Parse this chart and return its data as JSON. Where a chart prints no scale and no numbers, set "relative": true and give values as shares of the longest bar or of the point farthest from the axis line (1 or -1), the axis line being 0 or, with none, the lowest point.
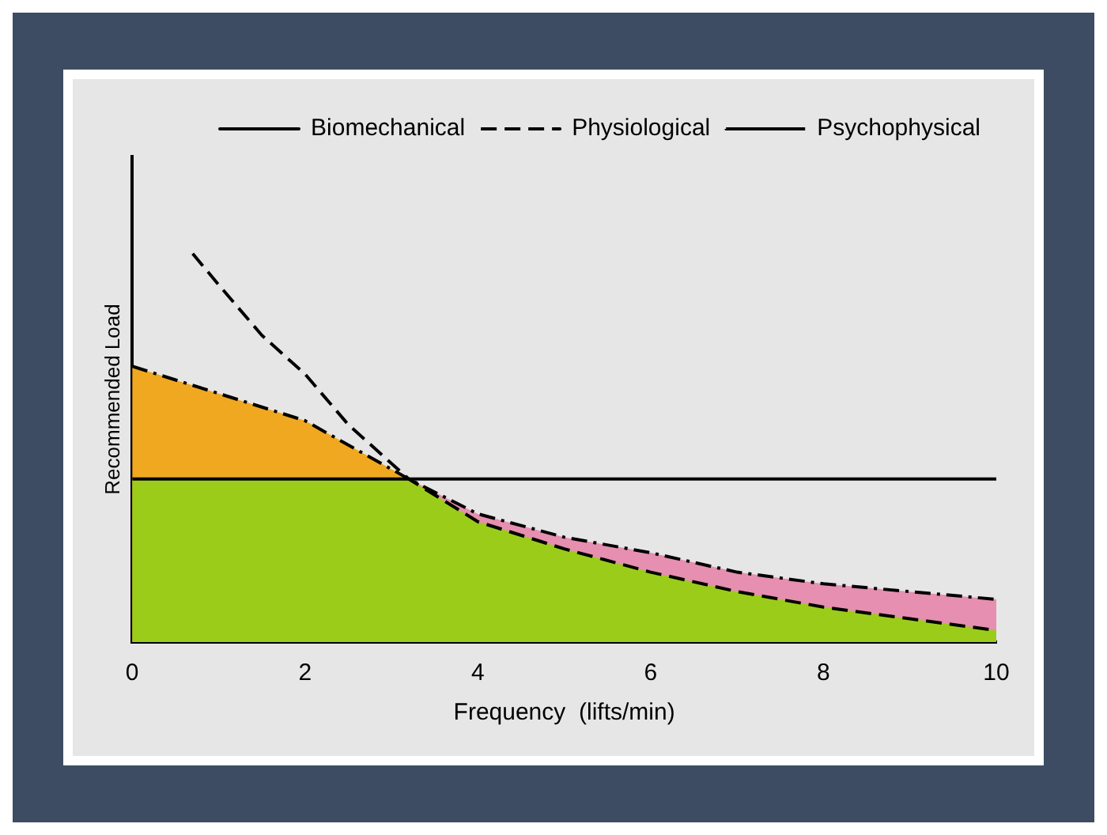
{
  "chart_data": {
    "type": "line",
    "relative": true,
    "xlabel": "Frequency  (lifts/min)",
    "ylabel": "Recommended Load",
    "xlim": [
      0,
      10
    ],
    "xticks": [
      0,
      2,
      4,
      6,
      8,
      10
    ],
    "grid": false,
    "legend": "top right",
    "marker": "none",
    "series": [
      {
        "type": "area",
        "color": "#f0a820",
        "x": [
          0,
          1,
          2,
          3.2
        ],
        "values": [
          0.71,
          0.64,
          0.57,
          0.42
        ]
      },
      {
        "type": "area",
        "color": "#e68fb0",
        "x": [
          3.2,
          4,
          5,
          6,
          7,
          8,
          9,
          10
        ],
        "values": [
          0.42,
          0.33,
          0.27,
          0.23,
          0.18,
          0.15,
          0.13,
          0.11
        ]
      },
      {
        "type": "area",
        "color": "#9ccc1a",
        "x": [
          0,
          3.2,
          4,
          5,
          6,
          7,
          8,
          9,
          10
        ],
        "values": [
          0.42,
          0.42,
          0.31,
          0.24,
          0.18,
          0.13,
          0.09,
          0.06,
          0.03
        ]
      },
      {
        "name": "Biomechanical",
        "color": "#000000",
        "line_style": "solid",
        "x": [
          0,
          10
        ],
        "values": [
          0.42,
          0.42
        ]
      },
      {
        "name": "Physiological",
        "color": "#000000",
        "line_style": "dashed",
        "x": [
          0.7,
          1,
          1.5,
          2,
          2.5,
          3.2,
          4,
          5,
          6,
          7,
          8,
          9,
          10
        ],
        "values": [
          1,
          0.92,
          0.79,
          0.69,
          0.56,
          0.42,
          0.31,
          0.24,
          0.18,
          0.13,
          0.09,
          0.06,
          0.03
        ]
      },
      {
        "name": "Psychophysical",
        "color": "#000000",
        "line_style": "dotted",
        "x": [
          0,
          1,
          2,
          3.2,
          4,
          5,
          6,
          7,
          8,
          9,
          10
        ],
        "values": [
          0.71,
          0.64,
          0.57,
          0.42,
          0.33,
          0.27,
          0.23,
          0.18,
          0.15,
          0.13,
          0.11
        ]
      }
    ]
  }
}
